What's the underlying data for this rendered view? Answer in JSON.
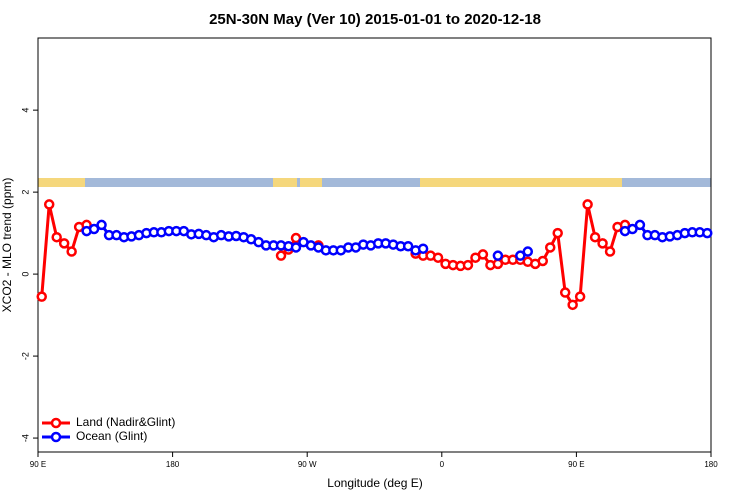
{
  "chart_data": {
    "type": "line",
    "title": "25N-30N May (Ver 10)   2015-01-01 to 2020-12-18",
    "xlabel": "Longitude (deg E)",
    "ylabel": "XCO2 - MLO trend (ppm)",
    "xlim": [
      90,
      540
    ],
    "ylim": [
      -4.34,
      5.76
    ],
    "xticks": [
      {
        "value": 90,
        "label": "90 E"
      },
      180,
      {
        "value": 270,
        "label": "90 W"
      },
      {
        "value": 360,
        "label": "0"
      },
      {
        "value": 450,
        "label": "90 E"
      },
      {
        "value": 540,
        "label": "180"
      }
    ],
    "yticks": [
      -4,
      -2,
      0,
      2,
      4
    ],
    "legend": "bottom-left",
    "x": [
      92.5,
      97.5,
      102.5,
      107.5,
      112.5,
      117.5,
      122.5,
      127.5,
      132.5,
      137.5,
      142.5,
      147.5,
      152.5,
      157.5,
      162.5,
      167.5,
      172.5,
      177.5,
      182.5,
      187.5,
      192.5,
      197.5,
      202.5,
      207.5,
      212.5,
      217.5,
      222.5,
      227.5,
      232.5,
      237.5,
      242.5,
      247.5,
      252.5,
      257.5,
      262.5,
      267.5,
      272.5,
      277.5,
      282.5,
      287.5,
      292.5,
      297.5,
      302.5,
      307.5,
      312.5,
      317.5,
      322.5,
      327.5,
      332.5,
      337.5,
      342.5,
      347.5,
      352.5,
      357.5,
      362.5,
      367.5,
      372.5,
      377.5,
      382.5,
      387.5,
      392.5,
      397.5,
      402.5,
      407.5,
      412.5,
      417.5,
      422.5,
      427.5,
      432.5,
      437.5,
      442.5,
      447.5,
      452.5,
      457.5,
      462.5,
      467.5,
      472.5,
      477.5,
      482.5,
      487.5,
      492.5,
      497.5,
      502.5,
      507.5,
      512.5,
      517.5,
      522.5,
      527.5,
      532.5,
      537.5
    ],
    "series": [
      {
        "name": "Land (Nadir&Glint)",
        "color": "#ff0000",
        "values": [
          -0.55,
          1.7,
          0.9,
          0.75,
          0.55,
          1.15,
          1.2,
          null,
          null,
          null,
          null,
          null,
          null,
          null,
          null,
          null,
          null,
          null,
          null,
          null,
          null,
          null,
          null,
          null,
          null,
          null,
          null,
          null,
          null,
          null,
          null,
          null,
          0.45,
          0.6,
          0.88,
          null,
          null,
          0.7,
          null,
          null,
          null,
          null,
          null,
          null,
          null,
          null,
          null,
          null,
          null,
          null,
          0.5,
          0.45,
          0.45,
          0.4,
          0.25,
          0.22,
          0.2,
          0.22,
          0.4,
          0.48,
          0.22,
          0.25,
          0.35,
          0.35,
          0.35,
          0.3,
          0.25,
          0.32,
          0.65,
          1.0,
          -0.45,
          -0.75,
          -0.55,
          1.7,
          0.9,
          0.75,
          0.55,
          1.15,
          1.2,
          null,
          null,
          null,
          null,
          null,
          null,
          null,
          null,
          null,
          null,
          null
        ]
      },
      {
        "name": "Ocean (Glint)",
        "color": "#0000ff",
        "values": [
          null,
          null,
          null,
          null,
          null,
          null,
          1.05,
          1.1,
          1.2,
          0.95,
          0.95,
          0.9,
          0.92,
          0.95,
          1.0,
          1.02,
          1.02,
          1.05,
          1.05,
          1.05,
          0.97,
          0.98,
          0.95,
          0.9,
          0.95,
          0.92,
          0.93,
          0.9,
          0.85,
          0.78,
          0.7,
          0.7,
          0.7,
          0.68,
          0.65,
          0.78,
          0.7,
          0.65,
          0.58,
          0.58,
          0.58,
          0.65,
          0.65,
          0.72,
          0.7,
          0.75,
          0.75,
          0.72,
          0.68,
          0.68,
          0.58,
          0.62,
          null,
          null,
          null,
          null,
          null,
          null,
          null,
          null,
          null,
          0.45,
          null,
          null,
          0.45,
          0.55,
          null,
          null,
          null,
          null,
          null,
          null,
          null,
          null,
          null,
          null,
          null,
          null,
          1.05,
          1.1,
          1.2,
          0.95,
          0.95,
          0.9,
          0.92,
          0.95,
          1.0,
          1.02,
          1.02,
          1.0
        ]
      }
    ]
  }
}
